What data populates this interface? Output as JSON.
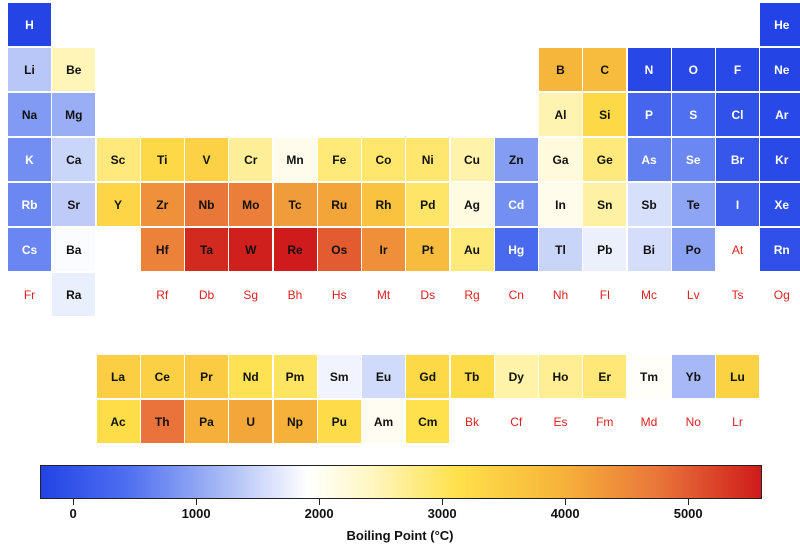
{
  "chart_data": {
    "type": "heatmap",
    "title": "",
    "colorbar": {
      "label": "Boiling Point (°C)",
      "range": [
        -269,
        5600
      ],
      "ticks": [
        0,
        1000,
        2000,
        3000,
        4000,
        5000
      ],
      "colors": [
        "#2343e6",
        "#ffffff",
        "#ffe04a",
        "#cf1b1b"
      ]
    },
    "nodata_color": "#e02020",
    "elements": [
      {
        "symbol": "H",
        "row": 1,
        "col": 1,
        "value": -253
      },
      {
        "symbol": "He",
        "row": 1,
        "col": 18,
        "value": -269
      },
      {
        "symbol": "Li",
        "row": 2,
        "col": 1,
        "value": 1342
      },
      {
        "symbol": "Be",
        "row": 2,
        "col": 2,
        "value": 2470
      },
      {
        "symbol": "B",
        "row": 2,
        "col": 13,
        "value": 3927
      },
      {
        "symbol": "C",
        "row": 2,
        "col": 14,
        "value": 3825
      },
      {
        "symbol": "N",
        "row": 2,
        "col": 15,
        "value": -196
      },
      {
        "symbol": "O",
        "row": 2,
        "col": 16,
        "value": -183
      },
      {
        "symbol": "F",
        "row": 2,
        "col": 17,
        "value": -188
      },
      {
        "symbol": "Ne",
        "row": 2,
        "col": 18,
        "value": -246
      },
      {
        "symbol": "Na",
        "row": 3,
        "col": 1,
        "value": 883
      },
      {
        "symbol": "Mg",
        "row": 3,
        "col": 2,
        "value": 1090
      },
      {
        "symbol": "Al",
        "row": 3,
        "col": 13,
        "value": 2519
      },
      {
        "symbol": "Si",
        "row": 3,
        "col": 14,
        "value": 3265
      },
      {
        "symbol": "P",
        "row": 3,
        "col": 15,
        "value": 280
      },
      {
        "symbol": "S",
        "row": 3,
        "col": 16,
        "value": 445
      },
      {
        "symbol": "Cl",
        "row": 3,
        "col": 17,
        "value": -34
      },
      {
        "symbol": "Ar",
        "row": 3,
        "col": 18,
        "value": -186
      },
      {
        "symbol": "K",
        "row": 4,
        "col": 1,
        "value": 759
      },
      {
        "symbol": "Ca",
        "row": 4,
        "col": 2,
        "value": 1484
      },
      {
        "symbol": "Sc",
        "row": 4,
        "col": 3,
        "value": 2836
      },
      {
        "symbol": "Ti",
        "row": 4,
        "col": 4,
        "value": 3287
      },
      {
        "symbol": "V",
        "row": 4,
        "col": 5,
        "value": 3407
      },
      {
        "symbol": "Cr",
        "row": 4,
        "col": 6,
        "value": 2671
      },
      {
        "symbol": "Mn",
        "row": 4,
        "col": 7,
        "value": 2061
      },
      {
        "symbol": "Fe",
        "row": 4,
        "col": 8,
        "value": 2861
      },
      {
        "symbol": "Co",
        "row": 4,
        "col": 9,
        "value": 2927
      },
      {
        "symbol": "Ni",
        "row": 4,
        "col": 10,
        "value": 2913
      },
      {
        "symbol": "Cu",
        "row": 4,
        "col": 11,
        "value": 2562
      },
      {
        "symbol": "Zn",
        "row": 4,
        "col": 12,
        "value": 907
      },
      {
        "symbol": "Ga",
        "row": 4,
        "col": 13,
        "value": 2204
      },
      {
        "symbol": "Ge",
        "row": 4,
        "col": 14,
        "value": 2833
      },
      {
        "symbol": "As",
        "row": 4,
        "col": 15,
        "value": 614
      },
      {
        "symbol": "Se",
        "row": 4,
        "col": 16,
        "value": 685
      },
      {
        "symbol": "Br",
        "row": 4,
        "col": 17,
        "value": 59
      },
      {
        "symbol": "Kr",
        "row": 4,
        "col": 18,
        "value": -153
      },
      {
        "symbol": "Rb",
        "row": 5,
        "col": 1,
        "value": 688
      },
      {
        "symbol": "Sr",
        "row": 5,
        "col": 2,
        "value": 1382
      },
      {
        "symbol": "Y",
        "row": 5,
        "col": 3,
        "value": 3345
      },
      {
        "symbol": "Zr",
        "row": 5,
        "col": 4,
        "value": 4409
      },
      {
        "symbol": "Nb",
        "row": 5,
        "col": 5,
        "value": 4744
      },
      {
        "symbol": "Mo",
        "row": 5,
        "col": 6,
        "value": 4639
      },
      {
        "symbol": "Tc",
        "row": 5,
        "col": 7,
        "value": 4265
      },
      {
        "symbol": "Ru",
        "row": 5,
        "col": 8,
        "value": 4150
      },
      {
        "symbol": "Rh",
        "row": 5,
        "col": 9,
        "value": 3695
      },
      {
        "symbol": "Pd",
        "row": 5,
        "col": 10,
        "value": 2963
      },
      {
        "symbol": "Ag",
        "row": 5,
        "col": 11,
        "value": 2162
      },
      {
        "symbol": "Cd",
        "row": 5,
        "col": 12,
        "value": 767
      },
      {
        "symbol": "In",
        "row": 5,
        "col": 13,
        "value": 2072
      },
      {
        "symbol": "Sn",
        "row": 5,
        "col": 14,
        "value": 2602
      },
      {
        "symbol": "Sb",
        "row": 5,
        "col": 15,
        "value": 1587
      },
      {
        "symbol": "Te",
        "row": 5,
        "col": 16,
        "value": 988
      },
      {
        "symbol": "I",
        "row": 5,
        "col": 17,
        "value": 184
      },
      {
        "symbol": "Xe",
        "row": 5,
        "col": 18,
        "value": -108
      },
      {
        "symbol": "Cs",
        "row": 6,
        "col": 1,
        "value": 671
      },
      {
        "symbol": "Ba",
        "row": 6,
        "col": 2,
        "value": 1870
      },
      {
        "symbol": "Hf",
        "row": 6,
        "col": 4,
        "value": 4603
      },
      {
        "symbol": "Ta",
        "row": 6,
        "col": 5,
        "value": 5458
      },
      {
        "symbol": "W",
        "row": 6,
        "col": 6,
        "value": 5555
      },
      {
        "symbol": "Re",
        "row": 6,
        "col": 7,
        "value": 5596
      },
      {
        "symbol": "Os",
        "row": 6,
        "col": 8,
        "value": 5012
      },
      {
        "symbol": "Ir",
        "row": 6,
        "col": 9,
        "value": 4428
      },
      {
        "symbol": "Pt",
        "row": 6,
        "col": 10,
        "value": 3825
      },
      {
        "symbol": "Au",
        "row": 6,
        "col": 11,
        "value": 2856
      },
      {
        "symbol": "Hg",
        "row": 6,
        "col": 12,
        "value": 357
      },
      {
        "symbol": "Tl",
        "row": 6,
        "col": 13,
        "value": 1473
      },
      {
        "symbol": "Pb",
        "row": 6,
        "col": 14,
        "value": 1749
      },
      {
        "symbol": "Bi",
        "row": 6,
        "col": 15,
        "value": 1564
      },
      {
        "symbol": "Po",
        "row": 6,
        "col": 16,
        "value": 962
      },
      {
        "symbol": "At",
        "row": 6,
        "col": 17,
        "value": null
      },
      {
        "symbol": "Rn",
        "row": 6,
        "col": 18,
        "value": -62
      },
      {
        "symbol": "Fr",
        "row": 7,
        "col": 1,
        "value": null
      },
      {
        "symbol": "Ra",
        "row": 7,
        "col": 2,
        "value": 1737
      },
      {
        "symbol": "Rf",
        "row": 7,
        "col": 4,
        "value": null
      },
      {
        "symbol": "Db",
        "row": 7,
        "col": 5,
        "value": null
      },
      {
        "symbol": "Sg",
        "row": 7,
        "col": 6,
        "value": null
      },
      {
        "symbol": "Bh",
        "row": 7,
        "col": 7,
        "value": null
      },
      {
        "symbol": "Hs",
        "row": 7,
        "col": 8,
        "value": null
      },
      {
        "symbol": "Mt",
        "row": 7,
        "col": 9,
        "value": null
      },
      {
        "symbol": "Ds",
        "row": 7,
        "col": 10,
        "value": null
      },
      {
        "symbol": "Rg",
        "row": 7,
        "col": 11,
        "value": null
      },
      {
        "symbol": "Cn",
        "row": 7,
        "col": 12,
        "value": null
      },
      {
        "symbol": "Nh",
        "row": 7,
        "col": 13,
        "value": null
      },
      {
        "symbol": "Fl",
        "row": 7,
        "col": 14,
        "value": null
      },
      {
        "symbol": "Mc",
        "row": 7,
        "col": 15,
        "value": null
      },
      {
        "symbol": "Lv",
        "row": 7,
        "col": 16,
        "value": null
      },
      {
        "symbol": "Ts",
        "row": 7,
        "col": 17,
        "value": null
      },
      {
        "symbol": "Og",
        "row": 7,
        "col": 18,
        "value": null
      },
      {
        "symbol": "La",
        "row": 9,
        "col": 3,
        "value": 3464
      },
      {
        "symbol": "Ce",
        "row": 9,
        "col": 4,
        "value": 3443
      },
      {
        "symbol": "Pr",
        "row": 9,
        "col": 5,
        "value": 3520
      },
      {
        "symbol": "Nd",
        "row": 9,
        "col": 6,
        "value": 3074
      },
      {
        "symbol": "Pm",
        "row": 9,
        "col": 7,
        "value": 3000
      },
      {
        "symbol": "Sm",
        "row": 9,
        "col": 8,
        "value": 1794
      },
      {
        "symbol": "Eu",
        "row": 9,
        "col": 9,
        "value": 1529
      },
      {
        "symbol": "Gd",
        "row": 9,
        "col": 10,
        "value": 3273
      },
      {
        "symbol": "Tb",
        "row": 9,
        "col": 11,
        "value": 3230
      },
      {
        "symbol": "Dy",
        "row": 9,
        "col": 12,
        "value": 2567
      },
      {
        "symbol": "Ho",
        "row": 9,
        "col": 13,
        "value": 2700
      },
      {
        "symbol": "Er",
        "row": 9,
        "col": 14,
        "value": 2868
      },
      {
        "symbol": "Tm",
        "row": 9,
        "col": 15,
        "value": 1950
      },
      {
        "symbol": "Yb",
        "row": 9,
        "col": 16,
        "value": 1196
      },
      {
        "symbol": "Lu",
        "row": 9,
        "col": 17,
        "value": 3402
      },
      {
        "symbol": "Ac",
        "row": 10,
        "col": 3,
        "value": 3198
      },
      {
        "symbol": "Th",
        "row": 10,
        "col": 4,
        "value": 4788
      },
      {
        "symbol": "Pa",
        "row": 10,
        "col": 5,
        "value": 4027
      },
      {
        "symbol": "U",
        "row": 10,
        "col": 6,
        "value": 4131
      },
      {
        "symbol": "Np",
        "row": 10,
        "col": 7,
        "value": 4000
      },
      {
        "symbol": "Pu",
        "row": 10,
        "col": 8,
        "value": 3228
      },
      {
        "symbol": "Am",
        "row": 10,
        "col": 9,
        "value": 2011
      },
      {
        "symbol": "Cm",
        "row": 10,
        "col": 10,
        "value": 3110
      },
      {
        "symbol": "Bk",
        "row": 10,
        "col": 11,
        "value": null
      },
      {
        "symbol": "Cf",
        "row": 10,
        "col": 12,
        "value": null
      },
      {
        "symbol": "Es",
        "row": 10,
        "col": 13,
        "value": null
      },
      {
        "symbol": "Fm",
        "row": 10,
        "col": 14,
        "value": null
      },
      {
        "symbol": "Md",
        "row": 10,
        "col": 15,
        "value": null
      },
      {
        "symbol": "No",
        "row": 10,
        "col": 16,
        "value": null
      },
      {
        "symbol": "Lr",
        "row": 10,
        "col": 17,
        "value": null
      }
    ]
  }
}
